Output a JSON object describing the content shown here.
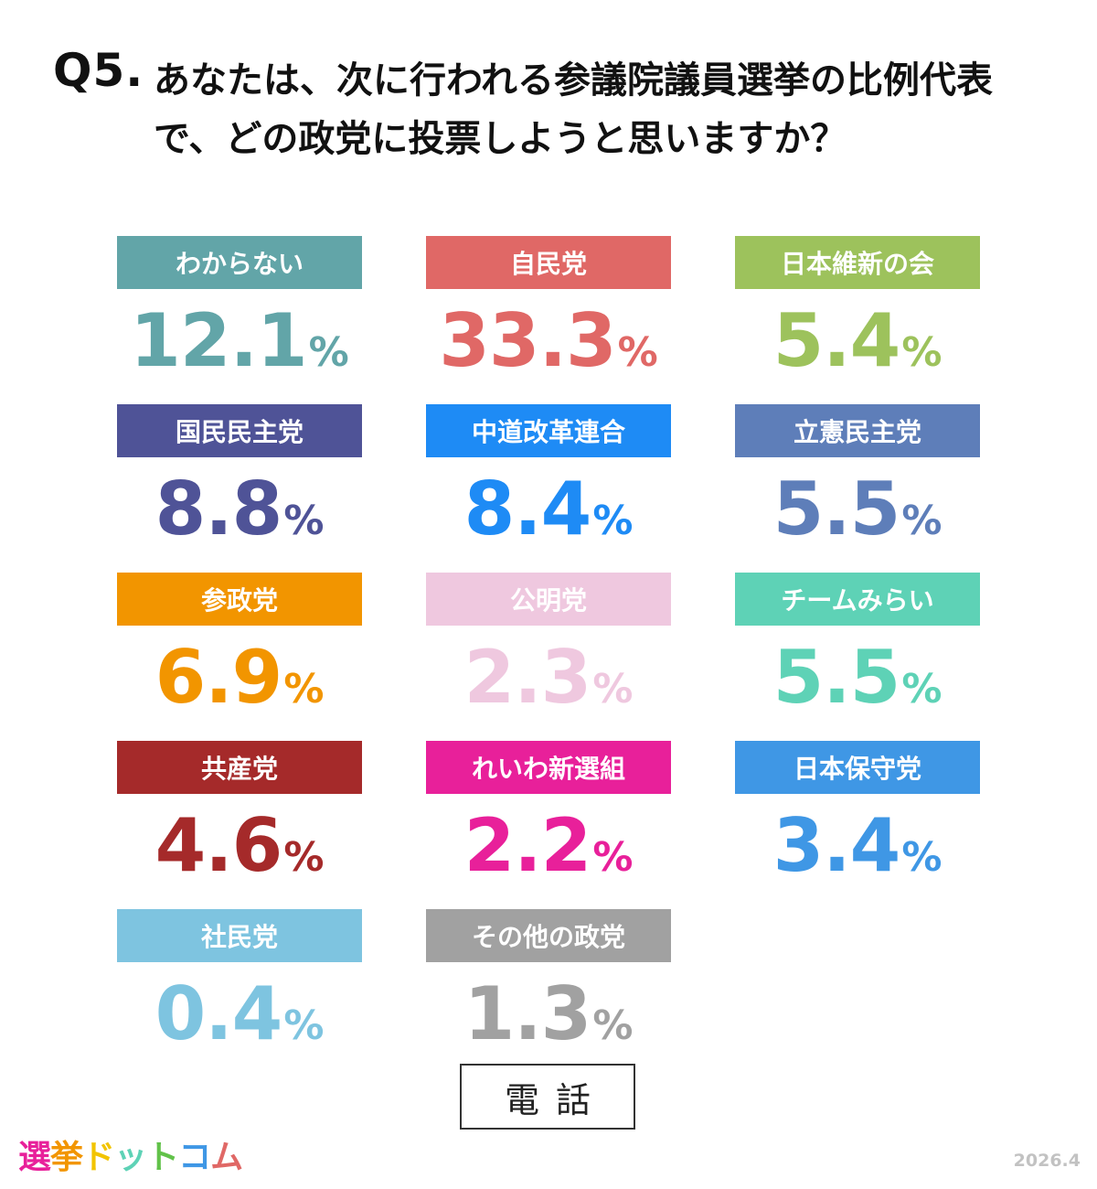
{
  "header": {
    "q_number": "Q5.",
    "question": "あなたは、次に行われる参議院議員選挙の比例代表で、どの政党に投票しようと思いますか？"
  },
  "chart_data": {
    "type": "table",
    "unit": "%",
    "items": [
      {
        "label": "わからない",
        "value": 12.1,
        "display": "12.1",
        "color": "#62A5A8"
      },
      {
        "label": "自民党",
        "value": 33.3,
        "display": "33.3",
        "color": "#E06866"
      },
      {
        "label": "日本維新の会",
        "value": 5.4,
        "display": "5.4",
        "color": "#9DC25C"
      },
      {
        "label": "国民民主党",
        "value": 8.8,
        "display": "8.8",
        "color": "#4F5397"
      },
      {
        "label": "中道改革連合",
        "value": 8.4,
        "display": "8.4",
        "color": "#1E8BF5"
      },
      {
        "label": "立憲民主党",
        "value": 5.5,
        "display": "5.5",
        "color": "#5E7EB9"
      },
      {
        "label": "参政党",
        "value": 6.9,
        "display": "6.9",
        "color": "#F29500"
      },
      {
        "label": "公明党",
        "value": 2.3,
        "display": "2.3",
        "color": "#EFC8DF"
      },
      {
        "label": "チームみらい",
        "value": 5.5,
        "display": "5.5",
        "color": "#5ED2B6"
      },
      {
        "label": "共産党",
        "value": 4.6,
        "display": "4.6",
        "color": "#A52A2A"
      },
      {
        "label": "れいわ新選組",
        "value": 2.2,
        "display": "2.2",
        "color": "#E8209A"
      },
      {
        "label": "日本保守党",
        "value": 3.4,
        "display": "3.4",
        "color": "#3F97E5"
      },
      {
        "label": "社民党",
        "value": 0.4,
        "display": "0.4",
        "color": "#7EC4E0"
      },
      {
        "label": "その他の政党",
        "value": 1.3,
        "display": "1.3",
        "color": "#A1A1A1"
      }
    ]
  },
  "footer": {
    "method": "電話",
    "logo": {
      "parts": [
        {
          "text": "選",
          "color": "#E8209A"
        },
        {
          "text": "挙",
          "color": "#F29500"
        },
        {
          "text": "ド",
          "color": "#F2C400"
        },
        {
          "text": "ッ",
          "color": "#5ED2B6"
        },
        {
          "text": "ト",
          "color": "#62C24A"
        },
        {
          "text": "コ",
          "color": "#3F97E5"
        },
        {
          "text": "ム",
          "color": "#E06866"
        }
      ]
    },
    "date": "2026.4"
  }
}
